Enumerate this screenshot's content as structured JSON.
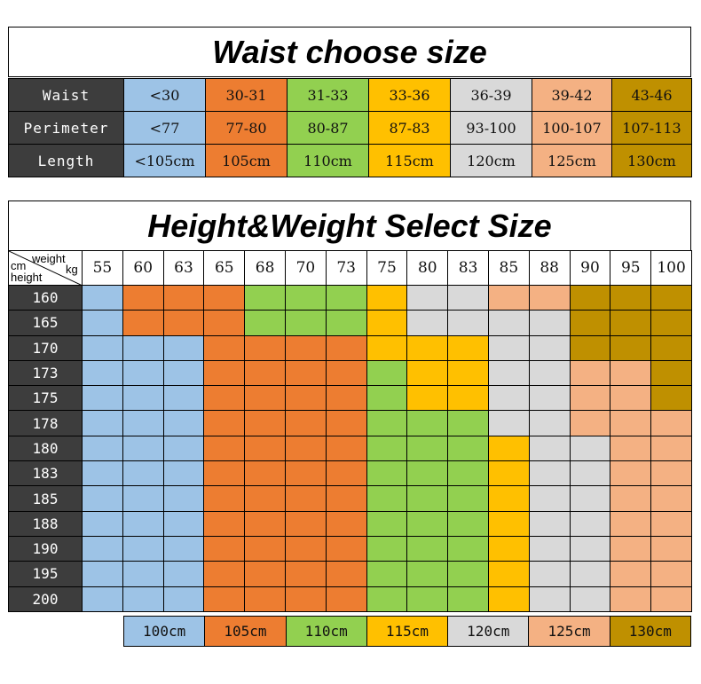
{
  "waist_title": "Waist choose size",
  "waist_table": {
    "rows": [
      {
        "label": "Waist",
        "cells": [
          "<30",
          "30-31",
          "31-33",
          "33-36",
          "36-39",
          "39-42",
          "43-46"
        ]
      },
      {
        "label": "Perimeter",
        "cells": [
          "<77",
          "77-80",
          "80-87",
          "87-83",
          "93-100",
          "100-107",
          "107-113"
        ]
      },
      {
        "label": "Length",
        "cells": [
          "<105cm",
          "105cm",
          "110cm",
          "115cm",
          "120cm",
          "125cm",
          "130cm"
        ]
      }
    ]
  },
  "colors": {
    "blue": "#9dc3e6",
    "orange": "#ed7d31",
    "green": "#92d050",
    "yellow": "#ffc000",
    "gray": "#d9d9d9",
    "peach": "#f4b183",
    "gold": "#bf9000",
    "header_dark": "#3d3d3d"
  },
  "size_colors": [
    "blue",
    "orange",
    "green",
    "yellow",
    "gray",
    "peach",
    "gold"
  ],
  "hw_title": "Height&Weight Select Size",
  "hw_table": {
    "corner": {
      "weight": "weight",
      "kg": "kg",
      "cm": "cm",
      "height": "height"
    },
    "weights": [
      "55",
      "60",
      "63",
      "65",
      "68",
      "70",
      "73",
      "75",
      "80",
      "83",
      "85",
      "88",
      "90",
      "95",
      "100"
    ],
    "heights": [
      "160",
      "165",
      "170",
      "173",
      "175",
      "178",
      "180",
      "183",
      "185",
      "188",
      "190",
      "195",
      "200"
    ],
    "grid": [
      [
        0,
        1,
        1,
        1,
        2,
        2,
        2,
        3,
        4,
        4,
        5,
        5,
        6,
        6,
        6
      ],
      [
        0,
        1,
        1,
        1,
        2,
        2,
        2,
        3,
        4,
        4,
        4,
        4,
        6,
        6,
        6
      ],
      [
        0,
        0,
        0,
        1,
        1,
        1,
        1,
        3,
        3,
        3,
        4,
        4,
        6,
        6,
        6
      ],
      [
        0,
        0,
        0,
        1,
        1,
        1,
        1,
        2,
        3,
        3,
        4,
        4,
        5,
        5,
        6
      ],
      [
        0,
        0,
        0,
        1,
        1,
        1,
        1,
        2,
        3,
        3,
        4,
        4,
        5,
        5,
        6
      ],
      [
        0,
        0,
        0,
        1,
        1,
        1,
        1,
        2,
        2,
        2,
        4,
        4,
        5,
        5,
        5
      ],
      [
        0,
        0,
        0,
        1,
        1,
        1,
        1,
        2,
        2,
        2,
        3,
        4,
        4,
        5,
        5
      ],
      [
        0,
        0,
        0,
        1,
        1,
        1,
        1,
        2,
        2,
        2,
        3,
        4,
        4,
        5,
        5
      ],
      [
        0,
        0,
        0,
        1,
        1,
        1,
        1,
        2,
        2,
        2,
        3,
        4,
        4,
        5,
        5
      ],
      [
        0,
        0,
        0,
        1,
        1,
        1,
        1,
        2,
        2,
        2,
        3,
        4,
        4,
        5,
        5
      ],
      [
        0,
        0,
        0,
        1,
        1,
        1,
        1,
        2,
        2,
        2,
        3,
        4,
        4,
        5,
        5
      ],
      [
        0,
        0,
        0,
        1,
        1,
        1,
        1,
        2,
        2,
        2,
        3,
        4,
        4,
        5,
        5
      ],
      [
        0,
        0,
        0,
        1,
        1,
        1,
        1,
        2,
        2,
        2,
        3,
        4,
        4,
        5,
        5
      ]
    ]
  },
  "legend": [
    "100cm",
    "105cm",
    "110cm",
    "115cm",
    "120cm",
    "125cm",
    "130cm"
  ]
}
